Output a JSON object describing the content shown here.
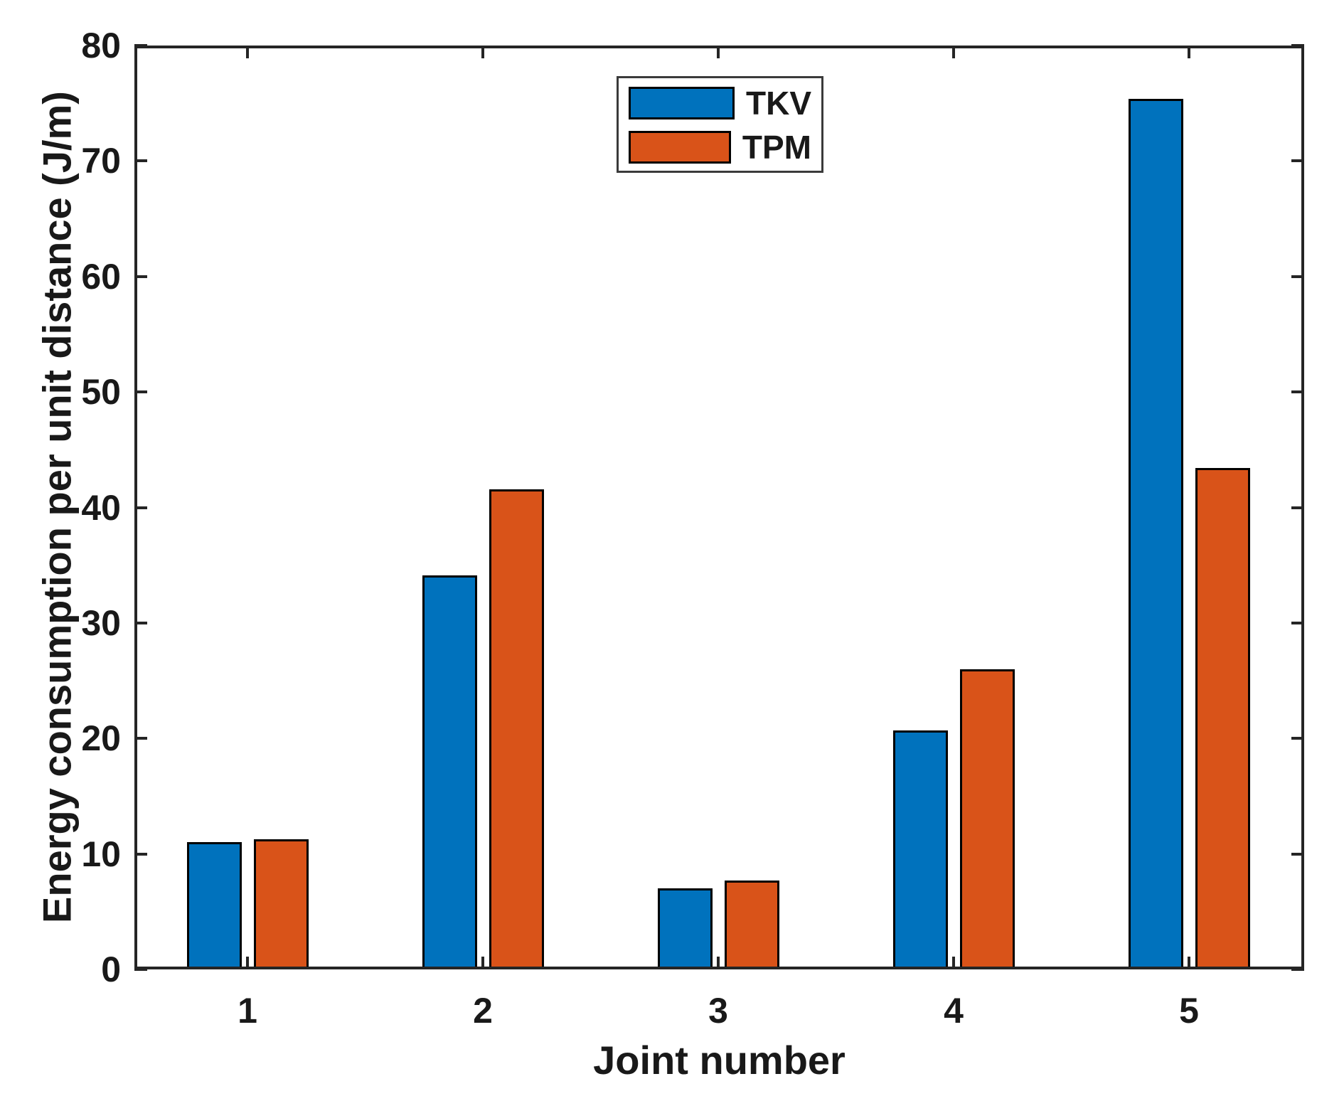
{
  "chart_data": {
    "type": "bar",
    "title": "",
    "xlabel": "Joint number",
    "ylabel": "Energy consumption per unit distance (J/m)",
    "categories": [
      "1",
      "2",
      "3",
      "4",
      "5"
    ],
    "series": [
      {
        "name": "TKV",
        "color": "#0072BD",
        "values": [
          11.0,
          34.1,
          7.0,
          20.7,
          75.4
        ]
      },
      {
        "name": "TPM",
        "color": "#D95319",
        "values": [
          11.3,
          41.6,
          7.7,
          26.0,
          43.4
        ]
      }
    ],
    "ylim": [
      0,
      80
    ],
    "yticks": [
      0,
      10,
      20,
      30,
      40,
      50,
      60,
      70,
      80
    ],
    "grid": false,
    "legend_position": "top-center",
    "bar_edge_color": "#000000",
    "axis_color": "#252525",
    "background_color": "#FFFFFF"
  }
}
